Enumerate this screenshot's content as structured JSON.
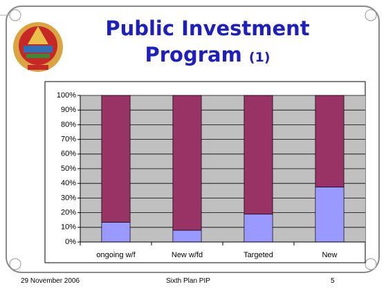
{
  "title": "Public Investment Program",
  "title_suffix": "(1)",
  "footer": {
    "date": "29 November 2006",
    "center": "Sixth Plan PIP",
    "page": "5"
  },
  "chart_data": {
    "type": "stacked_bar",
    "categories": [
      "ongoing w/f",
      "New w/fd",
      "Targeted",
      "New"
    ],
    "series": [
      {
        "color": "#9999ff",
        "values": [
          13.5,
          8,
          19,
          37.5
        ]
      },
      {
        "color": "#993366",
        "values": [
          86.5,
          92,
          81,
          62.5
        ]
      }
    ],
    "ylim": [
      0,
      100
    ],
    "yticks": [
      {
        "value": 0,
        "label": "0%"
      },
      {
        "value": 10,
        "label": "10%"
      },
      {
        "value": 20,
        "label": "20%"
      },
      {
        "value": 30,
        "label": "30%"
      },
      {
        "value": 40,
        "label": "40%"
      },
      {
        "value": 50,
        "label": "50%"
      },
      {
        "value": 60,
        "label": "60%"
      },
      {
        "value": 70,
        "label": "70%"
      },
      {
        "value": 80,
        "label": "80%"
      },
      {
        "value": 90,
        "label": "90%"
      },
      {
        "value": 100,
        "label": "100%"
      }
    ],
    "grid": true,
    "plot_background": "#c0c0c0"
  }
}
